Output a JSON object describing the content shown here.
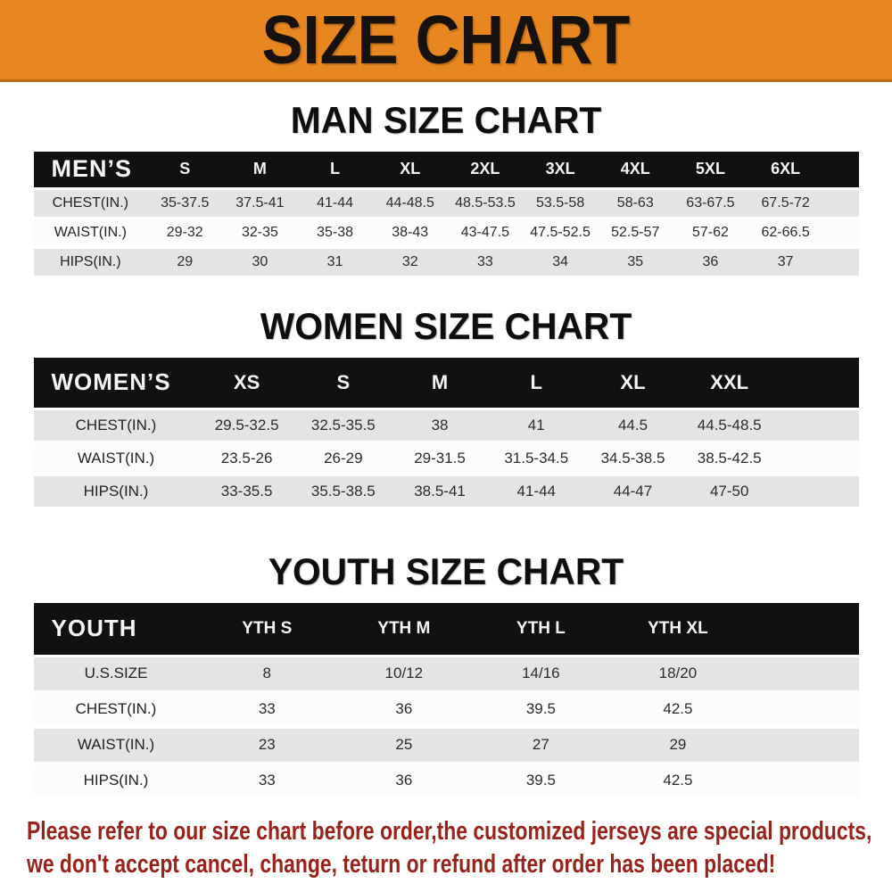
{
  "banner": {
    "title": "SIZE CHART"
  },
  "colors": {
    "banner_bg": "#E8871F",
    "table_header_bg": "#131110",
    "row_stripe": "#e5e4e2",
    "footnote_text": "#97231d"
  },
  "chart_data": [
    {
      "type": "table",
      "title": "MAN SIZE CHART",
      "corner_label": "MEN’S",
      "columns": [
        "S",
        "M",
        "L",
        "XL",
        "2XL",
        "3XL",
        "4XL",
        "5XL",
        "6XL"
      ],
      "rows": [
        {
          "label": "CHEST(IN.)",
          "values": [
            "35-37.5",
            "37.5-41",
            "41-44",
            "44-48.5",
            "48.5-53.5",
            "53.5-58",
            "58-63",
            "63-67.5",
            "67.5-72"
          ]
        },
        {
          "label": "WAIST(IN.)",
          "values": [
            "29-32",
            "32-35",
            "35-38",
            "38-43",
            "43-47.5",
            "47.5-52.5",
            "52.5-57",
            "57-62",
            "62-66.5"
          ]
        },
        {
          "label": "HIPS(IN.)",
          "values": [
            "29",
            "30",
            "31",
            "32",
            "33",
            "34",
            "35",
            "36",
            "37"
          ]
        }
      ]
    },
    {
      "type": "table",
      "title": "WOMEN SIZE CHART",
      "corner_label": "WOMEN’S",
      "columns": [
        "XS",
        "S",
        "M",
        "L",
        "XL",
        "XXL"
      ],
      "rows": [
        {
          "label": "CHEST(IN.)",
          "values": [
            "29.5-32.5",
            "32.5-35.5",
            "38",
            "41",
            "44.5",
            "44.5-48.5"
          ]
        },
        {
          "label": "WAIST(IN.)",
          "values": [
            "23.5-26",
            "26-29",
            "29-31.5",
            "31.5-34.5",
            "34.5-38.5",
            "38.5-42.5"
          ]
        },
        {
          "label": "HIPS(IN.)",
          "values": [
            "33-35.5",
            "35.5-38.5",
            "38.5-41",
            "41-44",
            "44-47",
            "47-50"
          ]
        }
      ]
    },
    {
      "type": "table",
      "title": "YOUTH SIZE CHART",
      "corner_label": "YOUTH",
      "columns": [
        "YTH S",
        "YTH M",
        "YTH L",
        "YTH XL"
      ],
      "rows": [
        {
          "label": "U.S.SIZE",
          "values": [
            "8",
            "10/12",
            "14/16",
            "18/20"
          ]
        },
        {
          "label": "CHEST(IN.)",
          "values": [
            "33",
            "36",
            "39.5",
            "42.5"
          ]
        },
        {
          "label": "WAIST(IN.)",
          "values": [
            "23",
            "25",
            "27",
            "29"
          ]
        },
        {
          "label": "HIPS(IN.)",
          "values": [
            "33",
            "36",
            "39.5",
            "42.5"
          ]
        }
      ]
    }
  ],
  "footnote": {
    "line1": "Please refer to our size chart before order,the customized jerseys are special products,",
    "line2": "we don't accept cancel, change, teturn or refund after order has been placed!"
  }
}
